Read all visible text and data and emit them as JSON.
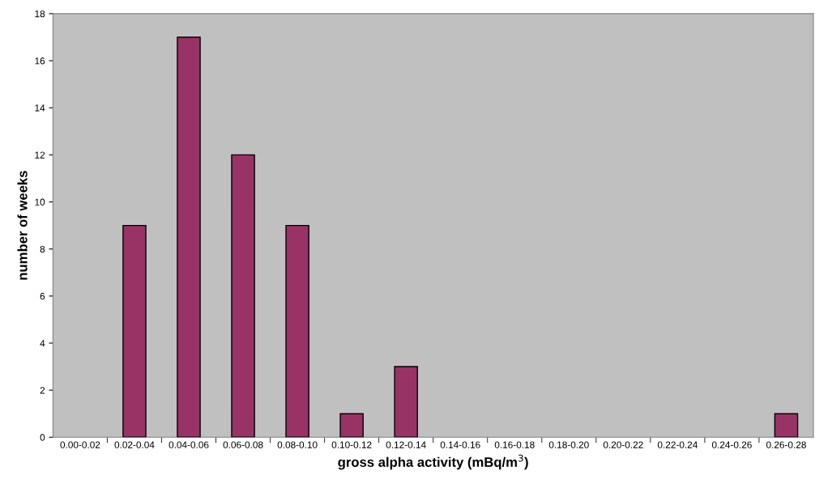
{
  "chart_data": {
    "type": "bar",
    "xlabel": "gross alpha activity (mBq/m$^{3}$)",
    "ylabel": "number of weeks",
    "categories": [
      "0.00-0.02",
      "0.02-0.04",
      "0.04-0.06",
      "0.06-0.08",
      "0.08-0.10",
      "0.10-0.12",
      "0.12-0.14",
      "0.14-0.16",
      "0.16-0.18",
      "0.18-0.20",
      "0.20-0.22",
      "0.22-0.24",
      "0.24-0.26",
      "0.26-0.28"
    ],
    "values": [
      0,
      9,
      17,
      12,
      9,
      1,
      3,
      0,
      0,
      0,
      0,
      0,
      0,
      1
    ],
    "color": "#993366",
    "ylim": [
      0,
      18
    ],
    "yticks": [
      0,
      2,
      4,
      6,
      8,
      10,
      12,
      14,
      16,
      18
    ],
    "grid": false
  }
}
